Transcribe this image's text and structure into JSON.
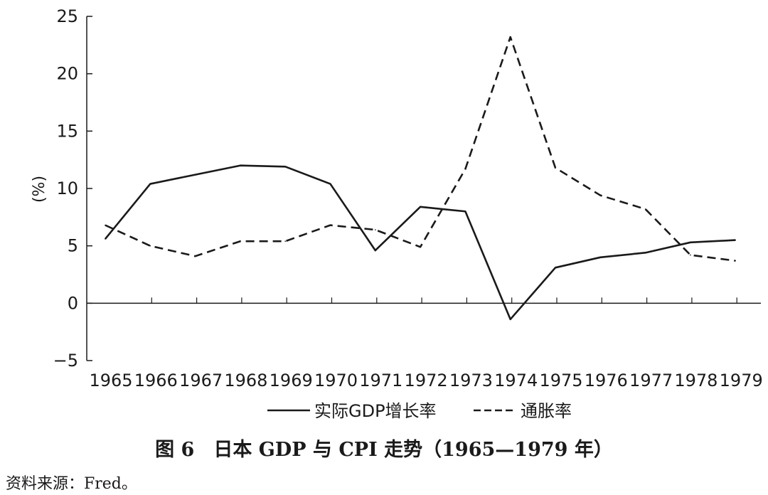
{
  "chart_data": {
    "type": "line",
    "categories": [
      "1965",
      "1966",
      "1967",
      "1968",
      "1969",
      "1970",
      "1971",
      "1972",
      "1973",
      "1974",
      "1975",
      "1976",
      "1977",
      "1978",
      "1979"
    ],
    "series": [
      {
        "name": "实际GDP增长率",
        "style": "solid",
        "values": [
          5.6,
          10.4,
          11.2,
          12.0,
          11.9,
          10.4,
          4.6,
          8.4,
          8.0,
          -1.4,
          3.1,
          4.0,
          4.4,
          5.3,
          5.5
        ]
      },
      {
        "name": "通胀率",
        "style": "dashed",
        "values": [
          6.8,
          5.0,
          4.1,
          5.4,
          5.4,
          6.8,
          6.4,
          4.9,
          11.7,
          23.2,
          11.8,
          9.4,
          8.2,
          4.2,
          3.7
        ]
      }
    ],
    "ylabel": "(%)",
    "ylim": [
      -5,
      25
    ],
    "yticks": [
      -5,
      0,
      5,
      10,
      15,
      20,
      25
    ],
    "legend_position": "bottom",
    "grid": false,
    "colors": {
      "line": "#1a1a1a"
    }
  },
  "caption": "图 6　日本 GDP 与 CPI 走势（1965—1979 年）",
  "source": "资料来源：Fred。"
}
